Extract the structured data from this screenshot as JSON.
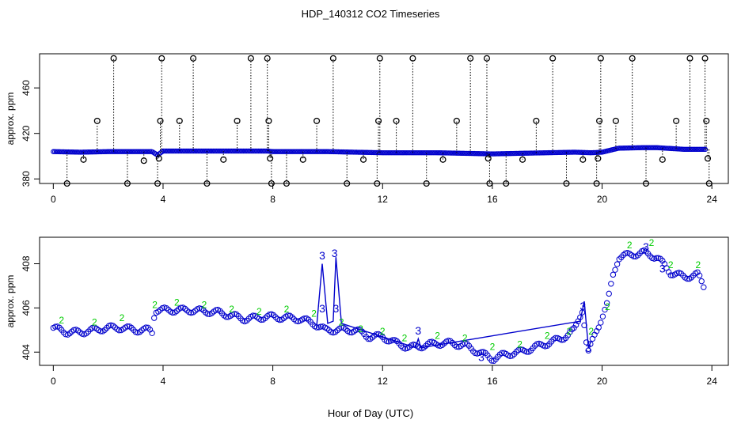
{
  "title": "HDP_140312  CO2 Timeseries",
  "xlabel": "Hour of Day (UTC)",
  "colors": {
    "primary": "#0000cc",
    "secondary": "#00cc00",
    "black": "#000000"
  },
  "chart_data": [
    {
      "type": "scatter",
      "panel": "top",
      "ylabel": "approx. ppm",
      "xlim": [
        -0.5,
        24.6
      ],
      "ylim": [
        376,
        490
      ],
      "xticks": [
        0,
        4,
        8,
        12,
        16,
        20,
        24
      ],
      "yticks": [
        380,
        420,
        460
      ],
      "baseline": [
        [
          0,
          404
        ],
        [
          1,
          403.5
        ],
        [
          2,
          404
        ],
        [
          3,
          404
        ],
        [
          3.6,
          404
        ],
        [
          3.8,
          401
        ],
        [
          4,
          404.5
        ],
        [
          6,
          404.5
        ],
        [
          7.8,
          404.5
        ],
        [
          8,
          404
        ],
        [
          10,
          404
        ],
        [
          12,
          403
        ],
        [
          14,
          403
        ],
        [
          16,
          402
        ],
        [
          19,
          403.5
        ],
        [
          19.6,
          403
        ],
        [
          20,
          403.5
        ],
        [
          20.6,
          407
        ],
        [
          21.5,
          407.5
        ],
        [
          22,
          407.5
        ],
        [
          23,
          406
        ],
        [
          23.8,
          406
        ]
      ],
      "outliers": [
        {
          "x": 0.5,
          "y": 376
        },
        {
          "x": 1.1,
          "y": 397
        },
        {
          "x": 1.6,
          "y": 431
        },
        {
          "x": 2.2,
          "y": 486
        },
        {
          "x": 2.7,
          "y": 376
        },
        {
          "x": 3.3,
          "y": 396
        },
        {
          "x": 3.8,
          "y": 376
        },
        {
          "x": 3.85,
          "y": 398
        },
        {
          "x": 3.9,
          "y": 431
        },
        {
          "x": 3.95,
          "y": 486
        },
        {
          "x": 4.6,
          "y": 431
        },
        {
          "x": 5.1,
          "y": 486
        },
        {
          "x": 5.6,
          "y": 376
        },
        {
          "x": 6.2,
          "y": 397
        },
        {
          "x": 6.7,
          "y": 431
        },
        {
          "x": 7.2,
          "y": 486
        },
        {
          "x": 7.8,
          "y": 486
        },
        {
          "x": 7.85,
          "y": 431
        },
        {
          "x": 7.9,
          "y": 398
        },
        {
          "x": 7.95,
          "y": 376
        },
        {
          "x": 8.5,
          "y": 376
        },
        {
          "x": 9.1,
          "y": 397
        },
        {
          "x": 9.6,
          "y": 431
        },
        {
          "x": 10.2,
          "y": 486
        },
        {
          "x": 10.7,
          "y": 376
        },
        {
          "x": 11.3,
          "y": 397
        },
        {
          "x": 11.8,
          "y": 376
        },
        {
          "x": 11.85,
          "y": 431
        },
        {
          "x": 11.9,
          "y": 486
        },
        {
          "x": 12.5,
          "y": 431
        },
        {
          "x": 13.1,
          "y": 486
        },
        {
          "x": 13.6,
          "y": 376
        },
        {
          "x": 14.2,
          "y": 397
        },
        {
          "x": 14.7,
          "y": 431
        },
        {
          "x": 15.2,
          "y": 486
        },
        {
          "x": 15.8,
          "y": 486
        },
        {
          "x": 15.85,
          "y": 398
        },
        {
          "x": 15.9,
          "y": 376
        },
        {
          "x": 16.5,
          "y": 376
        },
        {
          "x": 17.1,
          "y": 397
        },
        {
          "x": 17.6,
          "y": 431
        },
        {
          "x": 18.2,
          "y": 486
        },
        {
          "x": 18.7,
          "y": 376
        },
        {
          "x": 19.3,
          "y": 397
        },
        {
          "x": 19.8,
          "y": 376
        },
        {
          "x": 19.85,
          "y": 398
        },
        {
          "x": 19.9,
          "y": 431
        },
        {
          "x": 19.95,
          "y": 486
        },
        {
          "x": 20.5,
          "y": 431
        },
        {
          "x": 21.1,
          "y": 486
        },
        {
          "x": 21.6,
          "y": 376
        },
        {
          "x": 22.2,
          "y": 397
        },
        {
          "x": 22.7,
          "y": 431
        },
        {
          "x": 23.2,
          "y": 486
        },
        {
          "x": 23.75,
          "y": 486
        },
        {
          "x": 23.8,
          "y": 431
        },
        {
          "x": 23.85,
          "y": 398
        },
        {
          "x": 23.9,
          "y": 376
        }
      ]
    },
    {
      "type": "scatter",
      "panel": "bottom",
      "ylabel": "approx. ppm",
      "xlim": [
        -0.5,
        24.6
      ],
      "ylim": [
        403.4,
        409.2
      ],
      "xticks": [
        0,
        4,
        8,
        12,
        16,
        20,
        24
      ],
      "yticks": [
        404,
        406,
        408
      ],
      "series": [
        {
          "marker": "circle",
          "points": [
            [
              0,
              405.1
            ],
            [
              0.5,
              404.9
            ],
            [
              1,
              404.9
            ],
            [
              1.5,
              405
            ],
            [
              2,
              405.1
            ],
            [
              2.5,
              405.1
            ],
            [
              3,
              405
            ],
            [
              3.5,
              405
            ],
            [
              3.6,
              404.9
            ],
            [
              3.7,
              405.9
            ],
            [
              4,
              405.9
            ],
            [
              5,
              405.9
            ],
            [
              6,
              405.8
            ],
            [
              7,
              405.5
            ],
            [
              7.8,
              405.6
            ],
            [
              8,
              405.6
            ],
            [
              9,
              405.5
            ],
            [
              9.5,
              405.3
            ],
            [
              9.9,
              405
            ],
            [
              10.5,
              405
            ],
            [
              11,
              405
            ],
            [
              11.5,
              404.7
            ],
            [
              12,
              404.7
            ],
            [
              12.5,
              404.4
            ],
            [
              13,
              404.2
            ],
            [
              13.5,
              404.3
            ],
            [
              14,
              404.4
            ],
            [
              14.5,
              404.4
            ],
            [
              15,
              404.3
            ],
            [
              15.5,
              404
            ],
            [
              16,
              403.7
            ],
            [
              16.5,
              403.9
            ],
            [
              17,
              404
            ],
            [
              17.5,
              404.2
            ],
            [
              18,
              404.4
            ],
            [
              18.5,
              404.6
            ],
            [
              19,
              405
            ],
            [
              19.3,
              406
            ],
            [
              19.4,
              404.6
            ],
            [
              19.5,
              404
            ],
            [
              19.8,
              405
            ],
            [
              20,
              405.6
            ],
            [
              20.2,
              406.2
            ],
            [
              20.4,
              407.5
            ],
            [
              20.6,
              408.3
            ],
            [
              21,
              408.4
            ],
            [
              21.5,
              408.5
            ],
            [
              22,
              408.3
            ],
            [
              22.5,
              407.6
            ],
            [
              23,
              407.4
            ],
            [
              23.5,
              407.5
            ],
            [
              23.7,
              407
            ]
          ]
        },
        {
          "marker": "label",
          "points": [
            [
              0.3,
              405.3
            ],
            [
              1.5,
              405.2
            ],
            [
              2.5,
              405.4
            ],
            [
              3.7,
              406
            ],
            [
              4.5,
              406.1
            ],
            [
              5.5,
              406
            ],
            [
              6.5,
              405.8
            ],
            [
              7.5,
              405.7
            ],
            [
              8.5,
              405.8
            ],
            [
              9.5,
              405.6
            ],
            [
              10.5,
              405.2
            ],
            [
              11.2,
              404.9
            ],
            [
              12,
              404.8
            ],
            [
              12.8,
              404.5
            ],
            [
              14,
              404.6
            ],
            [
              15,
              404.5
            ],
            [
              16,
              404.1
            ],
            [
              17,
              404.2
            ],
            [
              18,
              404.6
            ],
            [
              18.8,
              404.8
            ],
            [
              19.6,
              404.8
            ],
            [
              20.2,
              405.9
            ],
            [
              21,
              408.7
            ],
            [
              21.8,
              408.8
            ],
            [
              22.5,
              407.8
            ],
            [
              23.5,
              407.8
            ]
          ],
          "labels": [
            "2",
            "2",
            "2",
            "2",
            "2",
            "2",
            "2",
            "2",
            "2",
            "2",
            "2",
            "2",
            "2",
            "2",
            "2",
            "2",
            "2",
            "2",
            "2",
            "2",
            "2",
            "2",
            "2",
            "2",
            "2",
            "2"
          ]
        },
        {
          "marker": "label",
          "points": [
            [
              9.8,
              408.2
            ],
            [
              10.25,
              408.3
            ],
            [
              9.8,
              405.8
            ],
            [
              10.3,
              405.8
            ],
            [
              13.3,
              404.8
            ],
            [
              15.6,
              403.6
            ],
            [
              19.3,
              405.9
            ],
            [
              19.5,
              404
            ],
            [
              21.6,
              408.6
            ],
            [
              22.2,
              407.6
            ]
          ],
          "labels": [
            "3",
            "3",
            "3",
            "3",
            "3",
            "3",
            "3",
            "3",
            "3",
            "3"
          ],
          "line": [
            [
              9.6,
              405.2
            ],
            [
              9.8,
              408
            ],
            [
              10,
              405.3
            ],
            [
              10.2,
              405.4
            ],
            [
              10.3,
              408.3
            ],
            [
              10.5,
              405.3
            ],
            [
              13.2,
              404.2
            ],
            [
              13.3,
              404.6
            ],
            [
              13.4,
              404.2
            ],
            [
              19.2,
              405.4
            ],
            [
              19.35,
              406.3
            ],
            [
              19.5,
              404.2
            ],
            [
              19.6,
              404.5
            ]
          ]
        }
      ]
    }
  ]
}
